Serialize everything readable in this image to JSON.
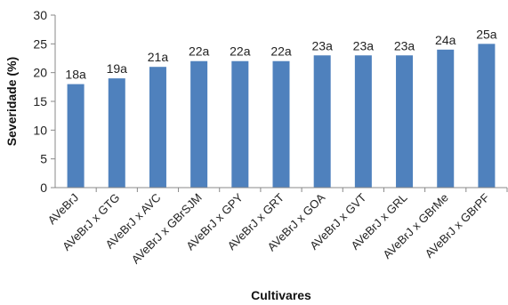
{
  "chart_data": {
    "type": "bar",
    "title": "",
    "xlabel": "Cultivares",
    "ylabel": "Severidade (%)",
    "ylim": [
      0,
      30
    ],
    "yticks": [
      0,
      5,
      10,
      15,
      20,
      25,
      30
    ],
    "grid": false,
    "bar_color": "#4F81BD",
    "categories": [
      "AVeBrJ",
      "AVeBrJ x GTG",
      "AVeBrJ x AVC",
      "AVeBrJ x GBrSJM",
      "AVeBrJ x GPY",
      "AVeBrJ x GRT",
      "AVeBrJ x GOA",
      "AVeBrJ x GVT",
      "AVeBrJ x GRL",
      "AVeBrJ x GBrMe",
      "AVeBrJ x GBrPF"
    ],
    "values": [
      18,
      19,
      21,
      22,
      22,
      22,
      23,
      23,
      23,
      24,
      25
    ],
    "data_labels": [
      "18a",
      "19a",
      "21a",
      "22a",
      "22a",
      "22a",
      "23a",
      "23a",
      "23a",
      "24a",
      "25a"
    ]
  }
}
